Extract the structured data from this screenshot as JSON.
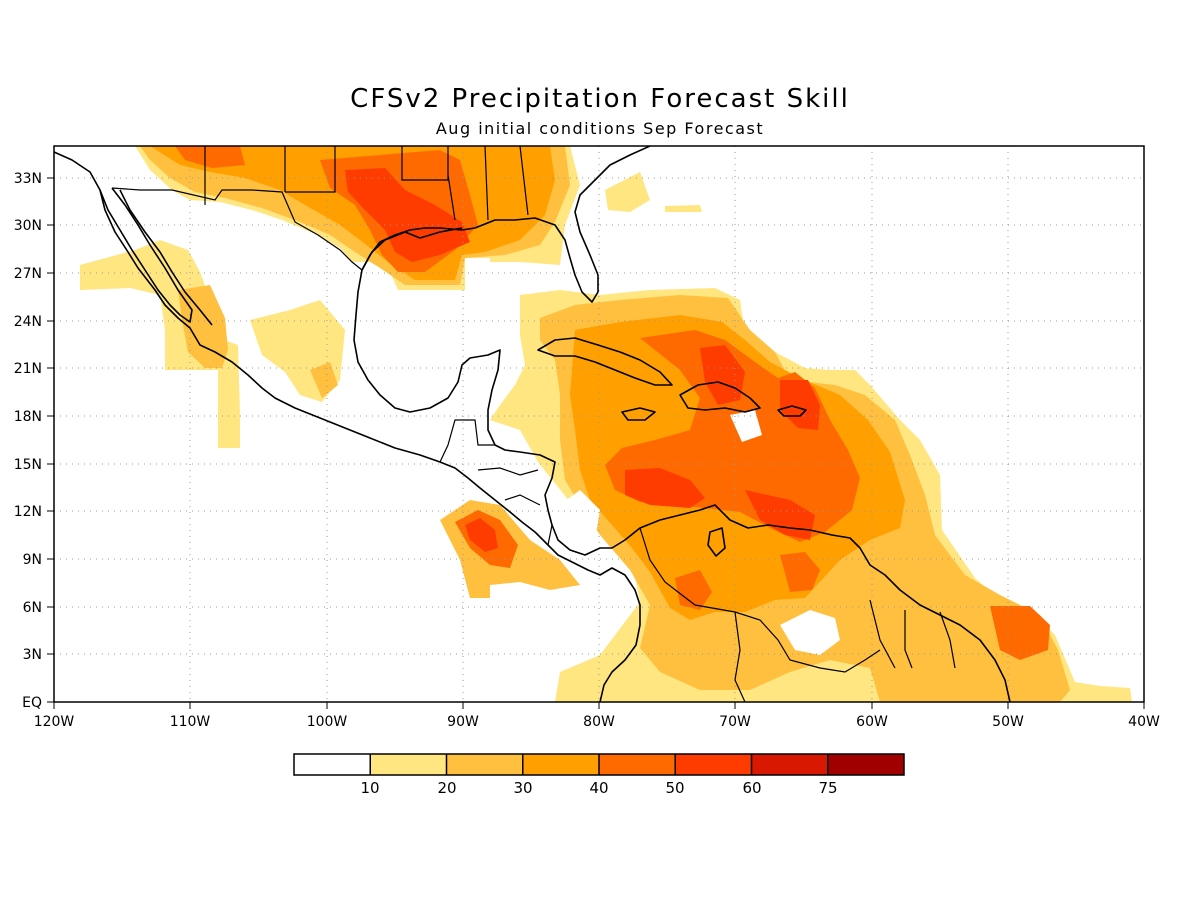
{
  "title": "CFSv2 Precipitation Forecast Skill",
  "subtitle": "Aug initial conditions  Sep Forecast",
  "map": {
    "lon_range": [
      -120,
      -40
    ],
    "lat_range": [
      0,
      35
    ],
    "lat_labels": [
      "EQ",
      "3N",
      "6N",
      "9N",
      "12N",
      "15N",
      "18N",
      "21N",
      "24N",
      "27N",
      "30N",
      "33N"
    ],
    "lon_labels": [
      "120W",
      "110W",
      "100W",
      "90W",
      "80W",
      "70W",
      "60W",
      "50W",
      "40W"
    ],
    "grid": true
  },
  "legend": {
    "labels": [
      "10",
      "20",
      "30",
      "40",
      "50",
      "60",
      "75"
    ],
    "colors": [
      "#ffffff",
      "#ffe680",
      "#ffc040",
      "#ffa000",
      "#ff6a00",
      "#ff3c00",
      "#d81800",
      "#a00000"
    ]
  }
}
